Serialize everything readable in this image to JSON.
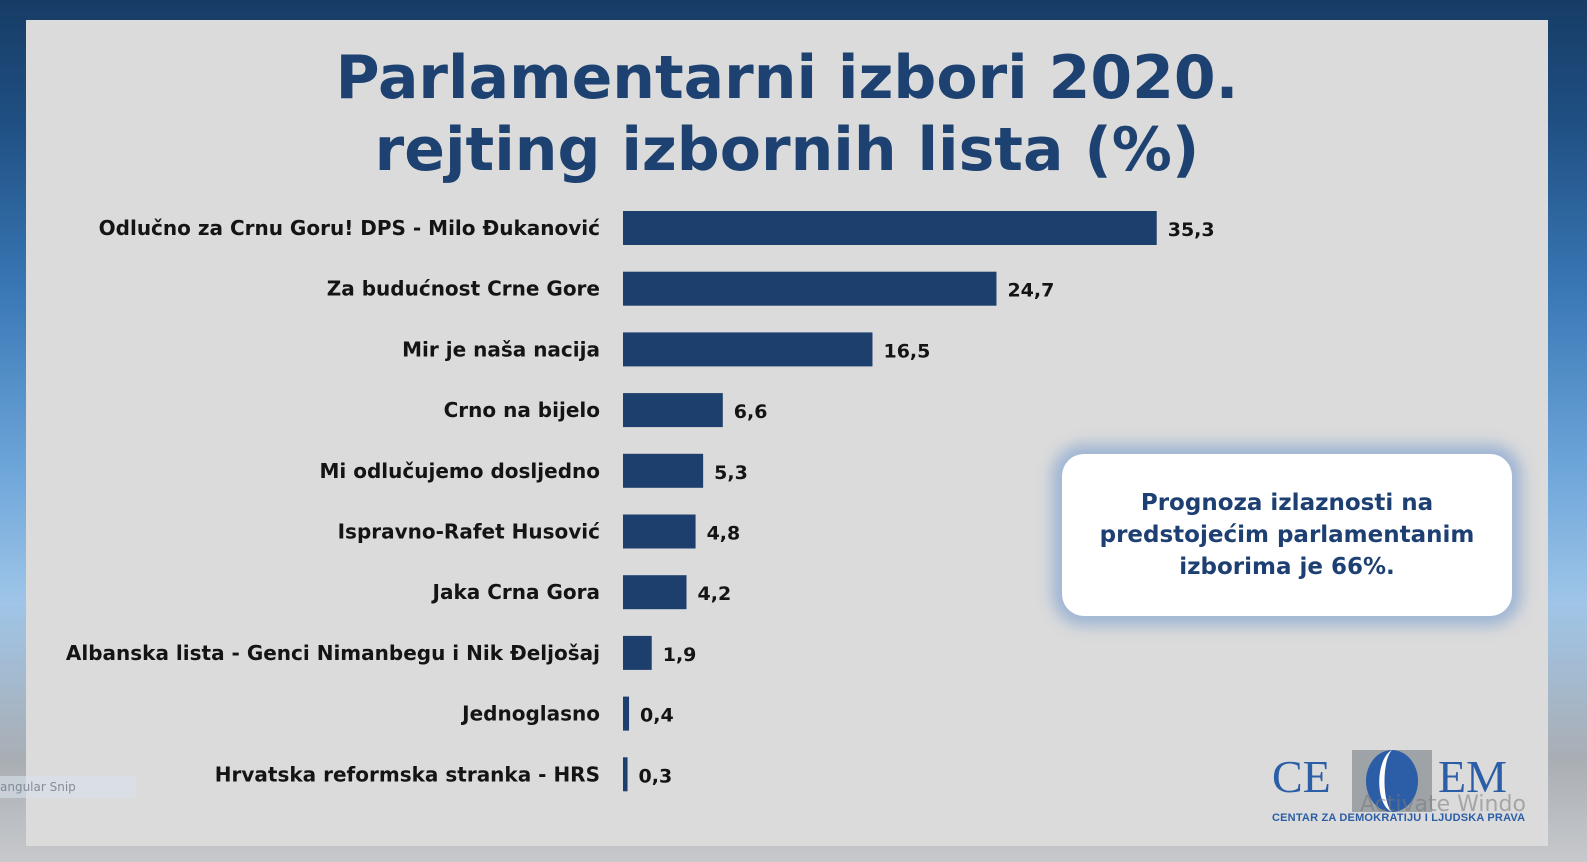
{
  "title": {
    "line1": "Parlamentarni izbori 2020.",
    "line2": "rejting izbornih lista (%)"
  },
  "chart_data": {
    "type": "bar",
    "orientation": "horizontal",
    "categories": [
      "Odlučno za Crnu Goru! DPS - Milo Đukanović",
      "Za budućnost Crne Gore",
      "Mir je naša nacija",
      "Crno na bijelo",
      "Mi odlučujemo dosljedno",
      "Ispravno-Rafet Husović",
      "Jaka Crna Gora",
      "Albanska lista - Genci Nimanbegu i Nik Đeljošaj",
      "Jednoglasno",
      "Hrvatska reformska stranka - HRS"
    ],
    "values": [
      35.3,
      24.7,
      16.5,
      6.6,
      5.3,
      4.8,
      4.2,
      1.9,
      0.4,
      0.3
    ],
    "value_labels": [
      "35,3",
      "24,7",
      "16,5",
      "6,6",
      "5,3",
      "4,8",
      "4,2",
      "1,9",
      "0,4",
      "0,3"
    ],
    "bar_color": "#1d3f6e",
    "grid": false,
    "legend": "none"
  },
  "callout": {
    "text": "Prognoza izlaznosti na predstojećim parlamentanim izborima je 66%."
  },
  "logo": {
    "left_text": "CE",
    "right_text": "EM",
    "subtitle": "CENTAR ZA DEMOKRATIJU I LJUDSKA PRAVA"
  },
  "overlay": {
    "watermark": "Activate Windo",
    "snip_tab": "angular Snip"
  }
}
